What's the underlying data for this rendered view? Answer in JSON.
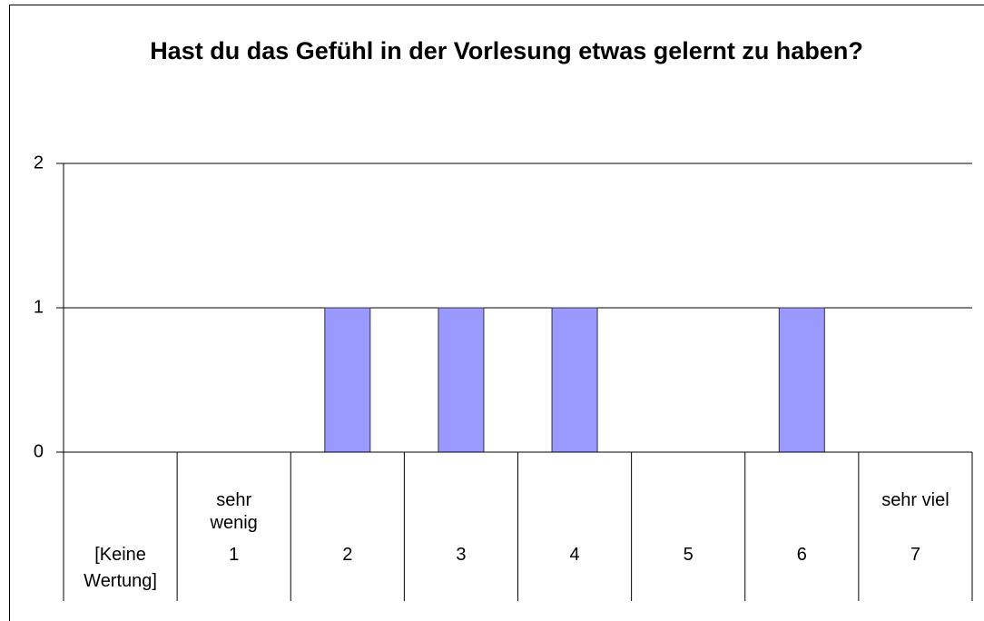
{
  "chart_data": {
    "type": "bar",
    "title": "Hast du das Gefühl in der Vorlesung etwas gelernt zu haben?",
    "categories": [
      "[Keine Wertung]",
      "1",
      "2",
      "3",
      "4",
      "5",
      "6",
      "7"
    ],
    "upper_labels": [
      null,
      "sehr wenig",
      null,
      null,
      null,
      null,
      null,
      "sehr viel"
    ],
    "values": [
      0,
      0,
      1,
      1,
      1,
      0,
      1,
      0
    ],
    "color": "#9999ff",
    "ylim": [
      0,
      2
    ],
    "yticks": [
      0,
      1,
      2
    ],
    "grid": true
  }
}
